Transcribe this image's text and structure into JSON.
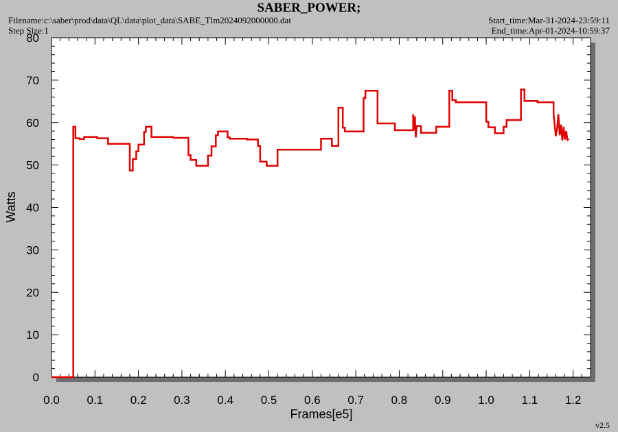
{
  "header": {
    "title": "SABER_POWER;",
    "filename": "Filename:c:\\saber\\prod\\data\\QL\\data\\plot_data\\SABE_Tlm2024092000000.dat",
    "step_size": "Step Size:1",
    "start_time": "Start_time:Mar-31-2024-23:59:11",
    "end_time": "End_time:Apr-01-2024-10:59:37"
  },
  "footer": {
    "version": "v2.5"
  },
  "colors": {
    "line": "#e00000",
    "plot_bg": "#ffffff",
    "window_bg": "#c0c0c0"
  },
  "chart_data": {
    "type": "line",
    "title": "SABER_POWER;",
    "xlabel": "Frames[e5]",
    "ylabel": "Watts",
    "xlim": [
      0,
      1.24
    ],
    "ylim": [
      0,
      80
    ],
    "x_ticks": [
      "0.0",
      "0.1",
      "0.2",
      "0.3",
      "0.4",
      "0.5",
      "0.6",
      "0.7",
      "0.8",
      "0.9",
      "1.0",
      "1.1",
      "1.2"
    ],
    "y_ticks": [
      "0",
      "10",
      "20",
      "30",
      "40",
      "50",
      "60",
      "70",
      "80"
    ],
    "grid": false,
    "series": [
      {
        "points": [
          [
            0.0,
            0
          ],
          [
            0.05,
            0
          ],
          [
            0.05,
            59
          ],
          [
            0.055,
            59
          ],
          [
            0.055,
            56.3
          ],
          [
            0.065,
            56.3
          ],
          [
            0.065,
            56.1
          ],
          [
            0.075,
            56.1
          ],
          [
            0.075,
            56.6
          ],
          [
            0.105,
            56.6
          ],
          [
            0.105,
            56.3
          ],
          [
            0.13,
            56.3
          ],
          [
            0.13,
            55.0
          ],
          [
            0.18,
            55.0
          ],
          [
            0.18,
            48.7
          ],
          [
            0.187,
            48.7
          ],
          [
            0.187,
            51.4
          ],
          [
            0.195,
            51.4
          ],
          [
            0.195,
            53.2
          ],
          [
            0.2,
            53.2
          ],
          [
            0.2,
            54.8
          ],
          [
            0.213,
            54.8
          ],
          [
            0.213,
            57.8
          ],
          [
            0.217,
            57.8
          ],
          [
            0.217,
            59.0
          ],
          [
            0.23,
            59.0
          ],
          [
            0.23,
            56.6
          ],
          [
            0.28,
            56.6
          ],
          [
            0.28,
            56.4
          ],
          [
            0.315,
            56.4
          ],
          [
            0.315,
            52.3
          ],
          [
            0.32,
            52.3
          ],
          [
            0.32,
            51.2
          ],
          [
            0.333,
            51.2
          ],
          [
            0.333,
            49.8
          ],
          [
            0.36,
            49.8
          ],
          [
            0.36,
            52.2
          ],
          [
            0.368,
            52.2
          ],
          [
            0.368,
            54.4
          ],
          [
            0.378,
            54.4
          ],
          [
            0.378,
            57.0
          ],
          [
            0.383,
            57.0
          ],
          [
            0.383,
            57.9
          ],
          [
            0.405,
            57.9
          ],
          [
            0.405,
            56.5
          ],
          [
            0.41,
            56.5
          ],
          [
            0.41,
            56.2
          ],
          [
            0.45,
            56.2
          ],
          [
            0.45,
            56.0
          ],
          [
            0.475,
            56.0
          ],
          [
            0.475,
            54.5
          ],
          [
            0.48,
            54.5
          ],
          [
            0.48,
            50.8
          ],
          [
            0.495,
            50.8
          ],
          [
            0.495,
            49.8
          ],
          [
            0.52,
            49.8
          ],
          [
            0.52,
            53.6
          ],
          [
            0.62,
            53.6
          ],
          [
            0.62,
            56.2
          ],
          [
            0.645,
            56.2
          ],
          [
            0.645,
            54.5
          ],
          [
            0.66,
            54.5
          ],
          [
            0.66,
            63.5
          ],
          [
            0.67,
            63.5
          ],
          [
            0.67,
            58.8
          ],
          [
            0.675,
            58.8
          ],
          [
            0.675,
            57.9
          ],
          [
            0.718,
            57.9
          ],
          [
            0.718,
            65.8
          ],
          [
            0.722,
            65.8
          ],
          [
            0.722,
            67.5
          ],
          [
            0.75,
            67.5
          ],
          [
            0.75,
            59.8
          ],
          [
            0.79,
            59.8
          ],
          [
            0.79,
            58.2
          ],
          [
            0.832,
            58.2
          ],
          [
            0.832,
            62.0
          ],
          [
            0.834,
            58.2
          ],
          [
            0.836,
            61.5
          ],
          [
            0.838,
            56.5
          ],
          [
            0.84,
            59.2
          ],
          [
            0.85,
            59.2
          ],
          [
            0.85,
            57.6
          ],
          [
            0.885,
            57.6
          ],
          [
            0.885,
            59.0
          ],
          [
            0.915,
            59.0
          ],
          [
            0.915,
            67.5
          ],
          [
            0.922,
            67.5
          ],
          [
            0.922,
            65.3
          ],
          [
            0.93,
            65.3
          ],
          [
            0.93,
            64.8
          ],
          [
            1.0,
            64.8
          ],
          [
            1.0,
            60.2
          ],
          [
            1.005,
            60.2
          ],
          [
            1.005,
            58.9
          ],
          [
            1.02,
            58.9
          ],
          [
            1.02,
            57.5
          ],
          [
            1.04,
            57.5
          ],
          [
            1.04,
            59.0
          ],
          [
            1.047,
            59.0
          ],
          [
            1.047,
            60.6
          ],
          [
            1.08,
            60.6
          ],
          [
            1.08,
            67.8
          ],
          [
            1.088,
            67.8
          ],
          [
            1.088,
            65.1
          ],
          [
            1.118,
            65.1
          ],
          [
            1.118,
            64.8
          ],
          [
            1.155,
            64.8
          ],
          [
            1.155,
            62.0
          ],
          [
            1.16,
            56.8
          ],
          [
            1.163,
            58.5
          ],
          [
            1.166,
            62.0
          ],
          [
            1.169,
            57.0
          ],
          [
            1.172,
            59.5
          ],
          [
            1.175,
            55.8
          ],
          [
            1.178,
            59.0
          ],
          [
            1.181,
            56.0
          ],
          [
            1.184,
            58.0
          ],
          [
            1.187,
            55.9
          ],
          [
            1.19,
            56.2
          ]
        ]
      }
    ]
  }
}
